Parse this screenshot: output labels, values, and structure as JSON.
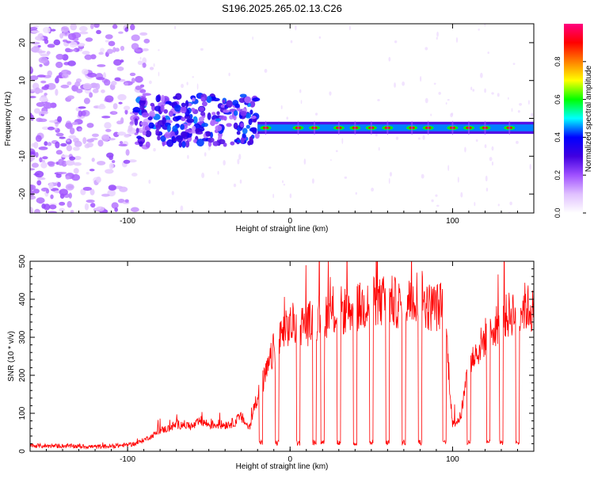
{
  "title": "S196.2025.265.02.13.C26",
  "chart_data": [
    {
      "type": "heatmap",
      "title": "S196.2025.265.02.13.C26",
      "xlabel": "Height of straight line (km)",
      "ylabel": "Frequency (Hz)",
      "xlim": [
        -160,
        150
      ],
      "ylim": [
        -25,
        25
      ],
      "x_ticks": [
        -100,
        0,
        100
      ],
      "y_ticks": [
        -20,
        -10,
        0,
        10,
        20
      ],
      "colorbar": {
        "label": "Normalized spectral amplitude",
        "range": [
          0,
          1
        ],
        "ticks": [
          0.0,
          0.2,
          0.4,
          0.6,
          0.8
        ],
        "tick_labels": [
          "0.0",
          "0.2",
          "0.4",
          "0.6",
          "0.8"
        ],
        "colors": [
          "#ffffff",
          "#e0c0ff",
          "#a050ff",
          "#4000e0",
          "#0000ff",
          "#00ffff",
          "#00ff00",
          "#ffff00",
          "#ff8000",
          "#ff0000",
          "#ff0080"
        ]
      },
      "features": {
        "noise_region_x": [
          -160,
          -95
        ],
        "transition_region_x": [
          -95,
          -20
        ],
        "carrier_start_x": -20,
        "carrier_frequency_hz": -2.5,
        "carrier_peak_x": [
          -15,
          5,
          15,
          30,
          40,
          50,
          60,
          75,
          85,
          100,
          110,
          120,
          135
        ]
      }
    },
    {
      "type": "line",
      "xlabel": "Height of straight line (km)",
      "ylabel": "SNR (10 * v/v)",
      "xlim": [
        -160,
        150
      ],
      "ylim": [
        0,
        500
      ],
      "x_ticks": [
        -100,
        0,
        100
      ],
      "y_ticks": [
        0,
        100,
        200,
        300,
        400,
        500
      ],
      "color": "#ff0000",
      "series": [
        {
          "name": "SNR",
          "x": [
            -160,
            -150,
            -140,
            -130,
            -120,
            -110,
            -100,
            -95,
            -90,
            -85,
            -80,
            -75,
            -70,
            -65,
            -60,
            -55,
            -50,
            -45,
            -40,
            -35,
            -30,
            -25,
            -20,
            -18,
            -15,
            -12,
            -10,
            -7,
            -5,
            -2,
            0,
            5,
            10,
            15,
            20,
            25,
            30,
            35,
            40,
            45,
            50,
            55,
            60,
            65,
            70,
            75,
            80,
            85,
            90,
            95,
            100,
            105,
            110,
            115,
            120,
            125,
            130,
            135,
            140,
            145,
            150
          ],
          "y": [
            15,
            14,
            14,
            13,
            12,
            13,
            17,
            20,
            30,
            40,
            55,
            60,
            70,
            70,
            65,
            80,
            70,
            70,
            70,
            75,
            90,
            60,
            150,
            170,
            200,
            240,
            270,
            290,
            300,
            320,
            330,
            340,
            330,
            350,
            360,
            360,
            370,
            370,
            380,
            380,
            400,
            390,
            400,
            390,
            380,
            400,
            420,
            380,
            380,
            380,
            70,
            90,
            230,
            260,
            300,
            330,
            340,
            360,
            380,
            380,
            370
          ],
          "dropouts_x": [
            -18,
            -8,
            5,
            15,
            20,
            30,
            40,
            50,
            60,
            70,
            80,
            95,
            110,
            122,
            130,
            140
          ]
        }
      ]
    }
  ]
}
